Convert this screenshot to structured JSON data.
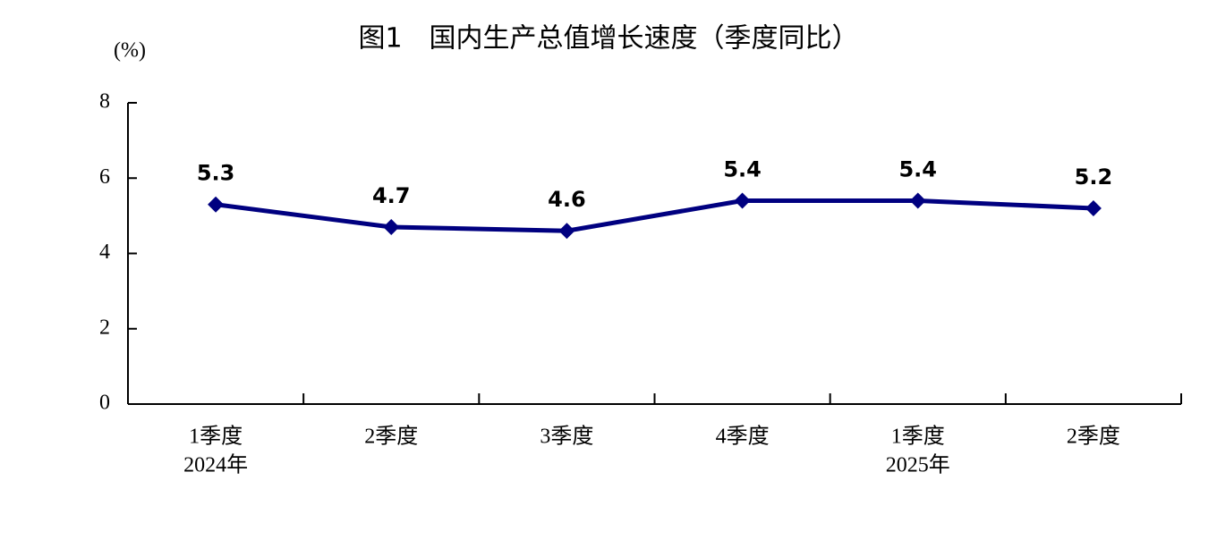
{
  "chart_data": {
    "type": "line",
    "title": "图1　国内生产总值增长速度（季度同比）",
    "y_unit": "(%)",
    "categories": [
      "1季度",
      "2季度",
      "3季度",
      "4季度",
      "1季度",
      "2季度"
    ],
    "year_labels": [
      "2024年",
      null,
      null,
      null,
      "2025年",
      null
    ],
    "series": [
      {
        "name": "国内生产总值增长速度",
        "color": "#000080",
        "values": [
          5.3,
          4.7,
          4.6,
          5.4,
          5.4,
          5.2
        ]
      }
    ],
    "ylim": [
      0,
      8
    ],
    "yticks": [
      0,
      2,
      4,
      6,
      8
    ],
    "grid": false
  }
}
